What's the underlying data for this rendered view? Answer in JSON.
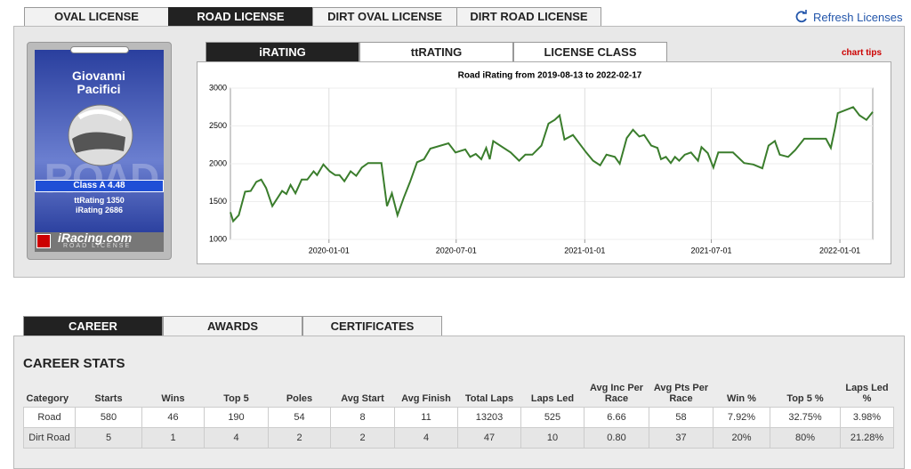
{
  "license_tabs": [
    "OVAL LICENSE",
    "ROAD LICENSE",
    "DIRT OVAL LICENSE",
    "DIRT ROAD LICENSE"
  ],
  "refresh": "Refresh Licenses",
  "license": {
    "name": "Giovanni Pacifici",
    "watermark": "ROAD",
    "class": "Class A 4.48",
    "ttrating": "ttRating 1350",
    "irating": "iRating 2686",
    "logo": "iRacing.com",
    "logo_sub": "ROAD LICENSE"
  },
  "chart_tabs": [
    "iRATING",
    "ttRATING",
    "LICENSE CLASS"
  ],
  "chart_tips": "chart tips",
  "chart_data": {
    "type": "line",
    "title": "Road iRating from 2019-08-13 to 2022-02-17",
    "color": "#3a7d2c",
    "grid": true,
    "x": [
      "2019-08-13",
      "2019-08-17",
      "2019-08-25",
      "2019-09-03",
      "2019-09-11",
      "2019-09-19",
      "2019-09-26",
      "2019-10-03",
      "2019-10-12",
      "2019-10-19",
      "2019-10-26",
      "2019-11-01",
      "2019-11-07",
      "2019-11-14",
      "2019-11-23",
      "2019-12-01",
      "2019-12-10",
      "2019-12-15",
      "2019-12-24",
      "2020-01-02",
      "2020-01-10",
      "2020-01-16",
      "2020-01-23",
      "2020-02-01",
      "2020-02-09",
      "2020-02-17",
      "2020-02-26",
      "2020-03-16",
      "2020-03-24",
      "2020-03-31",
      "2020-04-08",
      "2020-04-17",
      "2020-04-26",
      "2020-05-06",
      "2020-05-16",
      "2020-05-25",
      "2020-06-20",
      "2020-06-30",
      "2020-07-14",
      "2020-07-21",
      "2020-07-29",
      "2020-08-06",
      "2020-08-13",
      "2020-08-18",
      "2020-08-23",
      "2020-09-17",
      "2020-09-29",
      "2020-10-08",
      "2020-10-18",
      "2020-10-31",
      "2020-11-10",
      "2020-11-19",
      "2020-11-26",
      "2020-12-03",
      "2020-12-15",
      "2021-01-03",
      "2021-01-13",
      "2021-01-23",
      "2021-02-01",
      "2021-02-13",
      "2021-02-20",
      "2021-03-02",
      "2021-03-11",
      "2021-03-20",
      "2021-03-27",
      "2021-04-06",
      "2021-04-15",
      "2021-04-20",
      "2021-04-27",
      "2021-05-04",
      "2021-05-10",
      "2021-05-16",
      "2021-05-24",
      "2021-06-02",
      "2021-06-12",
      "2021-06-17",
      "2021-06-26",
      "2021-07-04",
      "2021-07-11",
      "2021-08-01",
      "2021-08-17",
      "2021-08-30",
      "2021-09-12",
      "2021-09-21",
      "2021-09-30",
      "2021-10-07",
      "2021-10-19",
      "2021-10-29",
      "2021-11-11",
      "2021-12-12",
      "2021-12-19",
      "2021-12-25",
      "2021-12-29",
      "2022-01-20",
      "2022-01-29",
      "2022-02-08",
      "2022-02-17"
    ],
    "values": [
      1360,
      1240,
      1320,
      1630,
      1640,
      1760,
      1790,
      1680,
      1440,
      1540,
      1640,
      1600,
      1720,
      1610,
      1790,
      1790,
      1900,
      1850,
      1990,
      1900,
      1850,
      1850,
      1770,
      1900,
      1840,
      1950,
      2010,
      2010,
      1440,
      1610,
      1320,
      1550,
      1760,
      2020,
      2060,
      2200,
      2270,
      2150,
      2190,
      2090,
      2130,
      2060,
      2210,
      2060,
      2300,
      2150,
      2040,
      2120,
      2120,
      2240,
      2530,
      2580,
      2640,
      2320,
      2380,
      2150,
      2040,
      1980,
      2120,
      2090,
      2000,
      2340,
      2450,
      2360,
      2380,
      2240,
      2210,
      2060,
      2090,
      2010,
      2090,
      2040,
      2120,
      2150,
      2040,
      2220,
      2140,
      1950,
      2150,
      2150,
      2010,
      1990,
      1940,
      2240,
      2300,
      2120,
      2090,
      2180,
      2330,
      2330,
      2210,
      2470,
      2670,
      2750,
      2640,
      2580,
      2686
    ],
    "xlim": [
      "2019-08-13",
      "2022-02-17"
    ],
    "xticks": [
      "2020-01-01",
      "2020-07-01",
      "2021-01-01",
      "2021-07-01",
      "2022-01-01"
    ],
    "ylim": [
      1000,
      3000
    ],
    "yticks": [
      1000,
      1500,
      2000,
      2500,
      3000
    ]
  },
  "career_tabs": [
    "CAREER",
    "AWARDS",
    "CERTIFICATES"
  ],
  "career_title": "CAREER STATS",
  "table": {
    "headers": [
      "Category",
      "Starts",
      "Wins",
      "Top 5",
      "Poles",
      "Avg Start",
      "Avg Finish",
      "Total Laps",
      "Laps Led",
      "Avg Inc Per Race",
      "Avg Pts Per Race",
      "Win %",
      "Top 5 %",
      "Laps Led %"
    ],
    "rows": [
      [
        "Road",
        "580",
        "46",
        "190",
        "54",
        "8",
        "11",
        "13203",
        "525",
        "6.66",
        "58",
        "7.92%",
        "32.75%",
        "3.98%"
      ],
      [
        "Dirt Road",
        "5",
        "1",
        "4",
        "2",
        "2",
        "4",
        "47",
        "10",
        "0.80",
        "37",
        "20%",
        "80%",
        "21.28%"
      ]
    ]
  }
}
